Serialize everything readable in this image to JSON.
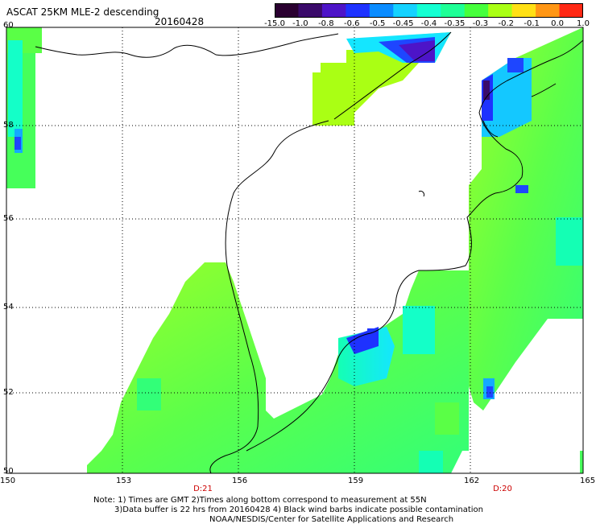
{
  "header": {
    "title": "ASCAT 25KM MLE-2 descending",
    "date": "20160428"
  },
  "colorbar": {
    "labels": [
      "-15.0",
      "-1.0",
      "-0.8",
      "-0.6",
      "-0.5",
      "-0.45",
      "-0.4",
      "-0.35",
      "-0.3",
      "-0.2",
      "-0.1",
      "0.0",
      "1.0"
    ],
    "colors": [
      "#2a0030",
      "#3a0a6a",
      "#4d14c8",
      "#1e32ff",
      "#0a8cff",
      "#14d2ff",
      "#14ffd2",
      "#1eff96",
      "#46ff3c",
      "#aaff14",
      "#ffe014",
      "#ff9614",
      "#ff2814"
    ]
  },
  "axes": {
    "x_ticks": [
      "150",
      "153",
      "156",
      "159",
      "162",
      "165"
    ],
    "y_ticks": [
      "60",
      "58",
      "56",
      "54",
      "52",
      "50"
    ]
  },
  "times": [
    "D:21",
    "D:20"
  ],
  "notes": {
    "line1": "Note: 1) Times are GMT 2)Times along bottom correspond to measurement at 55N",
    "line2": "3)Data buffer is 22 hrs from 20160428 4) Black wind barbs indicate possible contamination",
    "line3": "NOAA/NESDIS/Center for Satellite Applications and Research"
  }
}
